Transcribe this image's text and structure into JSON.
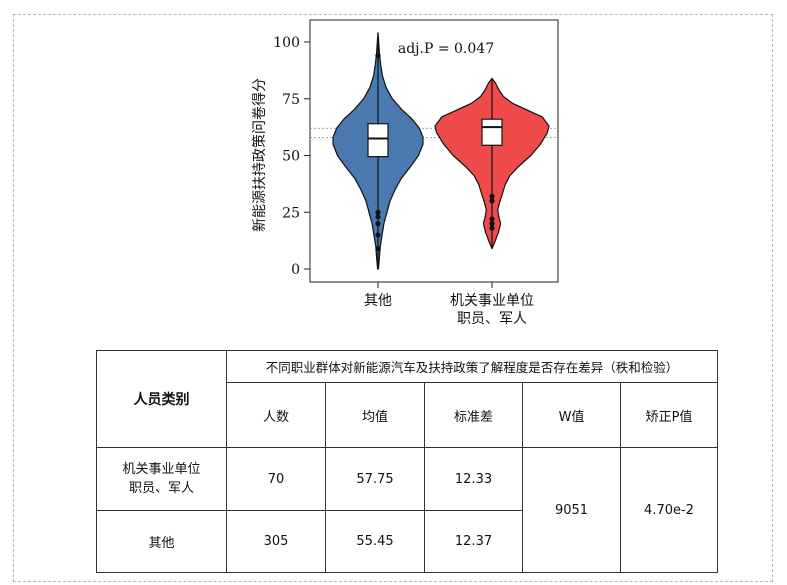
{
  "chart_data": {
    "type": "violin",
    "title": "",
    "xlabel": "",
    "ylabel": "新能源扶持政策问卷得分",
    "ylim": [
      0,
      100
    ],
    "yticks": [
      0,
      25,
      50,
      75,
      100
    ],
    "categories": [
      "其他",
      "机关事业单位\n职员、军人"
    ],
    "annotation": "adj.P = 0.047",
    "reference_lines": [
      62,
      58
    ],
    "series": [
      {
        "category": "其他",
        "color": "#4a78b0",
        "range": [
          0,
          104
        ],
        "box": {
          "q1": 49.5,
          "median": 57.5,
          "q3": 64
        },
        "whiskers": [
          25,
          94
        ],
        "outliers": [
          94,
          25,
          23,
          20,
          15,
          9
        ],
        "density": [
          [
            0,
            0.01
          ],
          [
            5,
            0.03
          ],
          [
            10,
            0.05
          ],
          [
            15,
            0.09
          ],
          [
            20,
            0.13
          ],
          [
            25,
            0.2
          ],
          [
            30,
            0.27
          ],
          [
            35,
            0.38
          ],
          [
            40,
            0.52
          ],
          [
            45,
            0.72
          ],
          [
            50,
            0.9
          ],
          [
            55,
            1.0
          ],
          [
            58,
            1.0
          ],
          [
            62,
            0.92
          ],
          [
            66,
            0.76
          ],
          [
            70,
            0.54
          ],
          [
            75,
            0.32
          ],
          [
            80,
            0.18
          ],
          [
            85,
            0.1
          ],
          [
            90,
            0.06
          ],
          [
            95,
            0.03
          ],
          [
            100,
            0.015
          ],
          [
            104,
            0
          ]
        ]
      },
      {
        "category": "机关事业单位\n职员、军人",
        "color": "#ef4b4b",
        "range": [
          9,
          84
        ],
        "box": {
          "q1": 54.5,
          "median": 62.5,
          "q3": 66
        },
        "whiskers": [
          32,
          74
        ],
        "outliers": [
          32,
          30,
          22,
          20,
          18
        ],
        "density": [
          [
            9,
            0
          ],
          [
            12,
            0.05
          ],
          [
            16,
            0.11
          ],
          [
            20,
            0.15
          ],
          [
            23,
            0.12
          ],
          [
            26,
            0.1
          ],
          [
            29,
            0.13
          ],
          [
            33,
            0.18
          ],
          [
            37,
            0.23
          ],
          [
            41,
            0.31
          ],
          [
            45,
            0.46
          ],
          [
            50,
            0.68
          ],
          [
            55,
            0.85
          ],
          [
            60,
            0.97
          ],
          [
            63,
            1.0
          ],
          [
            67,
            0.88
          ],
          [
            70,
            0.62
          ],
          [
            73,
            0.36
          ],
          [
            76,
            0.2
          ],
          [
            79,
            0.12
          ],
          [
            82,
            0.06
          ],
          [
            84,
            0
          ]
        ]
      }
    ]
  },
  "table": {
    "row_header": "人员类别",
    "title": "不同职业群体对新能源汽车及扶持政策了解程度是否存在差异（秩和检验）",
    "columns": [
      "人数",
      "均值",
      "标准差",
      "W值",
      "矫正P值"
    ],
    "rows": [
      {
        "group": "机关事业单位\n职员、军人",
        "n": "70",
        "mean": "57.75",
        "sd": "12.33"
      },
      {
        "group": "其他",
        "n": "305",
        "mean": "55.45",
        "sd": "12.37"
      }
    ],
    "w_value": "9051",
    "p_value": "4.70e-2"
  }
}
